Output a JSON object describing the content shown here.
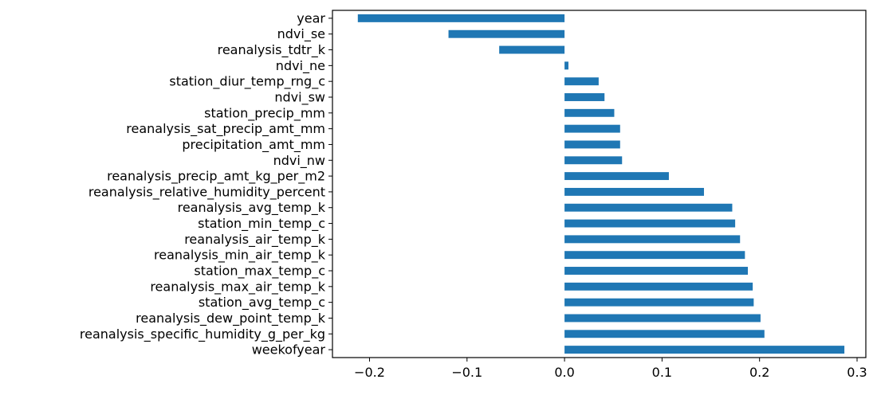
{
  "chart_data": {
    "type": "bar",
    "orientation": "horizontal",
    "title": "",
    "xlabel": "",
    "ylabel": "",
    "categories": [
      "year",
      "ndvi_se",
      "reanalysis_tdtr_k",
      "ndvi_ne",
      "station_diur_temp_rng_c",
      "ndvi_sw",
      "station_precip_mm",
      "reanalysis_sat_precip_amt_mm",
      "precipitation_amt_mm",
      "ndvi_nw",
      "reanalysis_precip_amt_kg_per_m2",
      "reanalysis_relative_humidity_percent",
      "reanalysis_avg_temp_k",
      "station_min_temp_c",
      "reanalysis_air_temp_k",
      "reanalysis_min_air_temp_k",
      "station_max_temp_c",
      "reanalysis_max_air_temp_k",
      "station_avg_temp_c",
      "reanalysis_dew_point_temp_k",
      "reanalysis_specific_humidity_g_per_kg",
      "weekofyear"
    ],
    "values": [
      -0.212,
      -0.119,
      -0.067,
      0.004,
      0.035,
      0.041,
      0.051,
      0.057,
      0.057,
      0.059,
      0.107,
      0.143,
      0.172,
      0.175,
      0.18,
      0.185,
      0.188,
      0.193,
      0.194,
      0.201,
      0.205,
      0.287
    ],
    "xlim": [
      -0.238,
      0.309
    ],
    "xticks": [
      -0.2,
      -0.1,
      0.0,
      0.1,
      0.2,
      0.3
    ],
    "xtick_labels": [
      "−0.2",
      "−0.1",
      "0.0",
      "0.1",
      "0.2",
      "0.3"
    ],
    "bar_color": "#1f77b4",
    "grid": false,
    "legend": "none"
  }
}
